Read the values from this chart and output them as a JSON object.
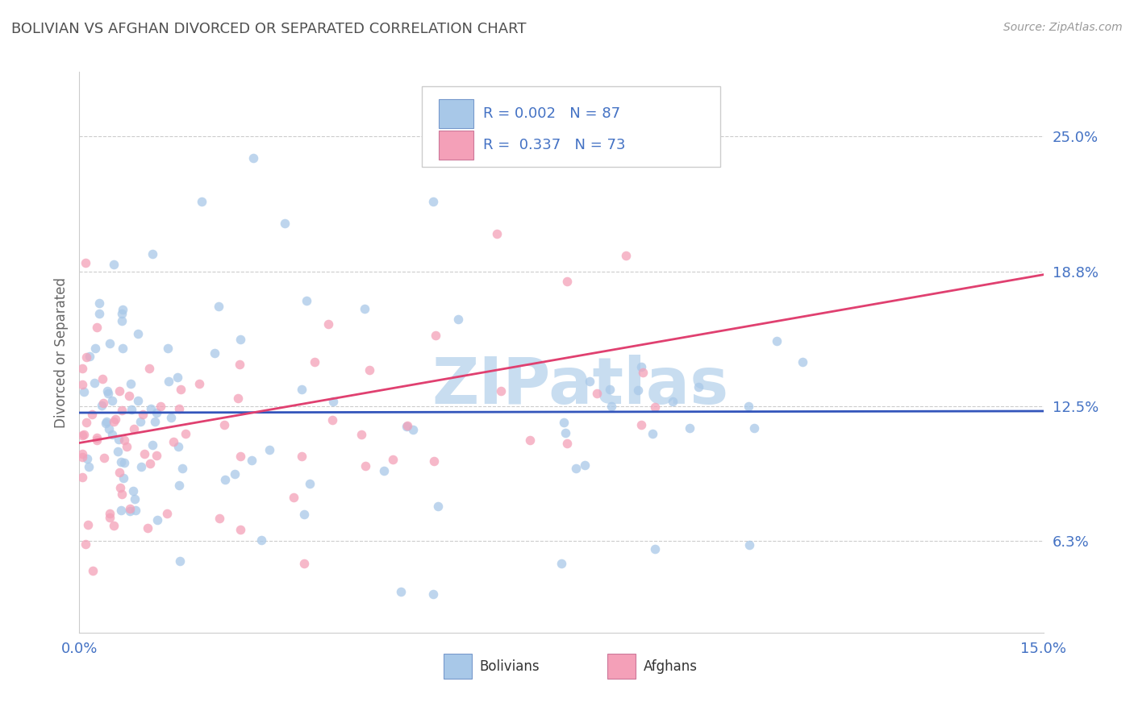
{
  "title": "BOLIVIAN VS AFGHAN DIVORCED OR SEPARATED CORRELATION CHART",
  "source": "Source: ZipAtlas.com",
  "ylabel": "Divorced or Separated",
  "xlim": [
    0.0,
    15.0
  ],
  "ylim": [
    2.0,
    28.0
  ],
  "ytick_vals": [
    6.25,
    12.5,
    18.75,
    25.0
  ],
  "ytick_labels": [
    "6.3%",
    "12.5%",
    "18.8%",
    "25.0%"
  ],
  "xtick_vals": [
    0.0,
    15.0
  ],
  "xtick_labels": [
    "0.0%",
    "15.0%"
  ],
  "bolivian_color": "#a8c8e8",
  "afghan_color": "#f4a0b8",
  "bolivian_line_color": "#3355bb",
  "afghan_line_color": "#e04070",
  "legend_label_1": "R = 0.002   N = 87",
  "legend_label_2": "R =  0.337   N = 73",
  "legend_bottom_label_1": "Bolivians",
  "legend_bottom_label_2": "Afghans",
  "background_color": "#ffffff",
  "grid_color": "#cccccc",
  "tick_label_color": "#4472c4",
  "title_color": "#505050",
  "watermark_color": "#c8ddf0",
  "bol_intercept": 12.2,
  "bol_slope": 0.005,
  "afg_intercept": 10.8,
  "afg_slope": 0.52
}
